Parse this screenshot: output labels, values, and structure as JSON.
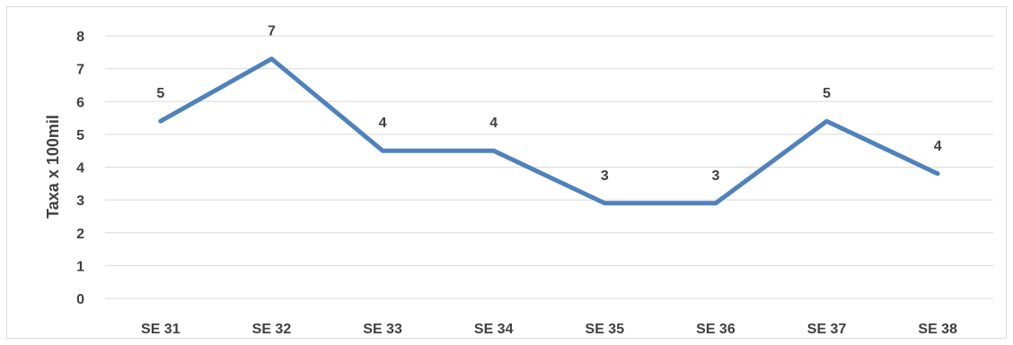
{
  "chart_data": {
    "type": "line",
    "title": "",
    "xlabel": "",
    "ylabel": "Taxa x 100mil",
    "categories": [
      "SE 31",
      "SE 32",
      "SE 33",
      "SE 34",
      "SE 35",
      "SE 36",
      "SE 37",
      "SE 38"
    ],
    "series": [
      {
        "values": [
          5.4,
          7.3,
          4.5,
          4.5,
          2.9,
          2.9,
          5.4,
          3.8
        ],
        "labels": [
          "5",
          "7",
          "4",
          "4",
          "3",
          "3",
          "5",
          "4"
        ],
        "color": "#4f81bd"
      }
    ],
    "ylim": [
      0,
      8
    ],
    "yticks": [
      "0",
      "1",
      "2",
      "3",
      "4",
      "5",
      "6",
      "7",
      "8"
    ],
    "grid": true,
    "legend": "none"
  }
}
